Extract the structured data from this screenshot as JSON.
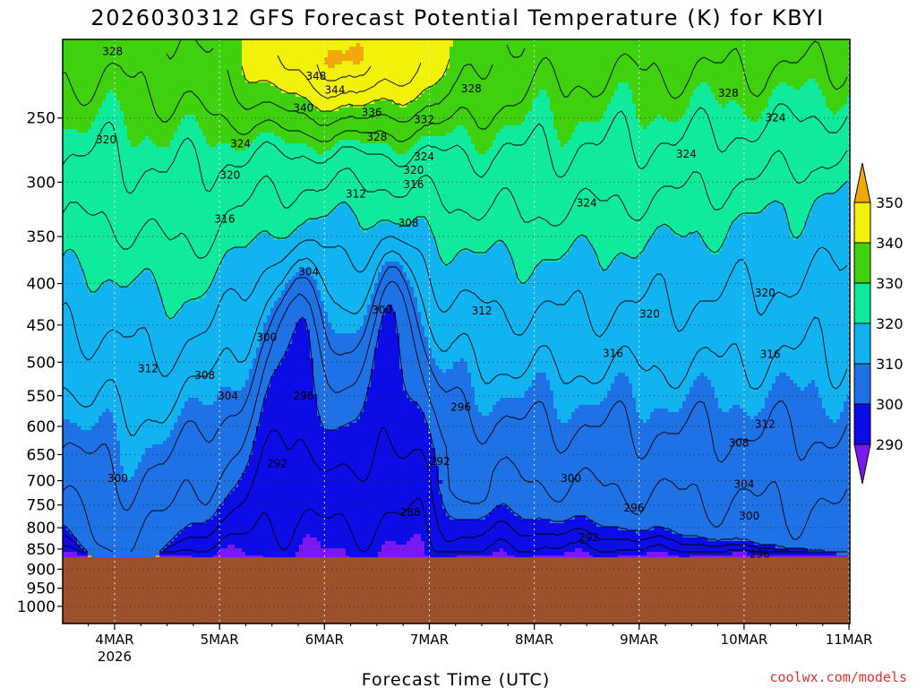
{
  "chart_data": {
    "type": "contour",
    "title": "2026030312 GFS Forecast Potential Temperature (K) for KBYI",
    "xlabel": "Forecast Time (UTC)",
    "ylabel": "",
    "x_ticks": [
      {
        "label": "4MAR",
        "sub": "2026",
        "day": 4
      },
      {
        "label": "5MAR",
        "sub": "",
        "day": 5
      },
      {
        "label": "6MAR",
        "sub": "",
        "day": 6
      },
      {
        "label": "7MAR",
        "sub": "",
        "day": 7
      },
      {
        "label": "8MAR",
        "sub": "",
        "day": 8
      },
      {
        "label": "9MAR",
        "sub": "",
        "day": 9
      },
      {
        "label": "10MAR",
        "sub": "",
        "day": 10
      },
      {
        "label": "11MAR",
        "sub": "",
        "day": 11
      }
    ],
    "xlim_days": [
      3.5,
      11.0
    ],
    "y_ticks": [
      250,
      300,
      350,
      400,
      450,
      500,
      550,
      600,
      650,
      700,
      750,
      800,
      850,
      900,
      950,
      1000
    ],
    "ylim_hpa": [
      200,
      1050
    ],
    "y_scale": "log-pressure",
    "surface_pressure_hpa": 870,
    "grid": true,
    "colorbar": {
      "levels": [
        290,
        300,
        310,
        320,
        330,
        340,
        350
      ],
      "colors": [
        "#7b17ef",
        "#0c0ce6",
        "#1f72e6",
        "#11b3f0",
        "#10ea9c",
        "#3fd00e",
        "#f1f10a",
        "#f2a70a"
      ]
    },
    "contour_labels": [
      {
        "text": "328",
        "day": 3.98,
        "p": 207
      },
      {
        "text": "348",
        "day": 5.92,
        "p": 222
      },
      {
        "text": "344",
        "day": 6.1,
        "p": 231
      },
      {
        "text": "340",
        "day": 5.8,
        "p": 243
      },
      {
        "text": "336",
        "day": 6.45,
        "p": 246
      },
      {
        "text": "332",
        "day": 6.95,
        "p": 251
      },
      {
        "text": "328",
        "day": 6.5,
        "p": 264
      },
      {
        "text": "328",
        "day": 7.4,
        "p": 230
      },
      {
        "text": "328",
        "day": 9.85,
        "p": 233
      },
      {
        "text": "324",
        "day": 10.3,
        "p": 250
      },
      {
        "text": "320",
        "day": 3.92,
        "p": 266
      },
      {
        "text": "324",
        "day": 5.2,
        "p": 269
      },
      {
        "text": "324",
        "day": 6.95,
        "p": 279
      },
      {
        "text": "324",
        "day": 9.45,
        "p": 277
      },
      {
        "text": "320",
        "day": 5.1,
        "p": 294
      },
      {
        "text": "320",
        "day": 6.85,
        "p": 290
      },
      {
        "text": "316",
        "day": 6.85,
        "p": 302
      },
      {
        "text": "312",
        "day": 6.3,
        "p": 310
      },
      {
        "text": "324",
        "day": 8.5,
        "p": 318
      },
      {
        "text": "316",
        "day": 5.05,
        "p": 333
      },
      {
        "text": "308",
        "day": 6.8,
        "p": 337
      },
      {
        "text": "304",
        "day": 5.85,
        "p": 387
      },
      {
        "text": "320",
        "day": 10.2,
        "p": 411
      },
      {
        "text": "300",
        "day": 6.55,
        "p": 431
      },
      {
        "text": "312",
        "day": 7.5,
        "p": 432
      },
      {
        "text": "320",
        "day": 9.1,
        "p": 436
      },
      {
        "text": "300",
        "day": 5.45,
        "p": 466
      },
      {
        "text": "316",
        "day": 8.75,
        "p": 488
      },
      {
        "text": "316",
        "day": 10.25,
        "p": 489
      },
      {
        "text": "312",
        "day": 4.32,
        "p": 509
      },
      {
        "text": "308",
        "day": 4.86,
        "p": 519
      },
      {
        "text": "304",
        "day": 5.08,
        "p": 550
      },
      {
        "text": "296",
        "day": 5.8,
        "p": 550
      },
      {
        "text": "296",
        "day": 7.3,
        "p": 568
      },
      {
        "text": "312",
        "day": 10.2,
        "p": 596
      },
      {
        "text": "308",
        "day": 9.95,
        "p": 629
      },
      {
        "text": "292",
        "day": 5.55,
        "p": 667
      },
      {
        "text": "292",
        "day": 7.1,
        "p": 663
      },
      {
        "text": "300",
        "day": 4.03,
        "p": 695
      },
      {
        "text": "300",
        "day": 8.35,
        "p": 695
      },
      {
        "text": "304",
        "day": 10.0,
        "p": 707
      },
      {
        "text": "296",
        "day": 8.95,
        "p": 756
      },
      {
        "text": "288",
        "day": 6.82,
        "p": 766
      },
      {
        "text": "300",
        "day": 10.05,
        "p": 774
      },
      {
        "text": "292",
        "day": 8.52,
        "p": 823
      },
      {
        "text": "296",
        "day": 10.15,
        "p": 862
      }
    ]
  },
  "credit": "coolwx.com/models",
  "colors": {
    "ground": "#9c512c",
    "contour_line": "#000000",
    "grid": "#c8c8c8"
  }
}
